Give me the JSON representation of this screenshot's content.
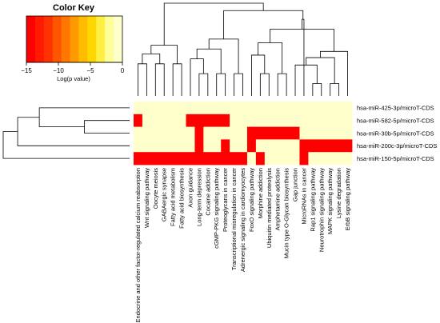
{
  "chart_data": {
    "type": "heatmap",
    "title": "",
    "color_key": {
      "title": "Color Key",
      "xlabel": "Log(p value)",
      "range": [
        -15,
        0
      ],
      "ticks": [
        -15,
        -10,
        -5,
        0
      ],
      "tick_labels": [
        "−15",
        "−10",
        "−5",
        "0"
      ],
      "colors": [
        "#ff0000",
        "#ff1a00",
        "#ff3300",
        "#ff5500",
        "#ff7700",
        "#ff9900",
        "#ffbb00",
        "#ffd700",
        "#ffee44",
        "#ffff99",
        "#ffffcc"
      ]
    },
    "low_color": "#ff0000",
    "high_color": "#ffffcc",
    "columns": [
      "Endocrine and other factor-regulated calcium reabsorption",
      "Wnt signaling pathway",
      "Oocyte meiosis",
      "GABAergic synapse",
      "Fatty acid metabolism",
      "Fatty acid biosynthesis",
      "Axon guidance",
      "Long-term depression",
      "Cocaine addiction",
      "cGMP-PKG signaling pathway",
      "Proteoglycans in cancer",
      "Transcriptional misregulation in cancer",
      "Adrenergic signaling in cardiomyocytes",
      "FoxO signaling pathway",
      "Morphine addiction",
      "Ubiquitin mediated proteolysis",
      "Amphetamine addiction",
      "Mucin type O-Glycan biosynthesis",
      "Gap junction",
      "MicroRNAs in cancer",
      "Rap1 signaling pathway",
      "Neurotrophin signaling pathway",
      "MAPK signaling pathway",
      "Lysine degradation",
      "ErbB signaling pathway"
    ],
    "rows": [
      "hsa-miR-425-3p/microT-CDS",
      "hsa-miR-582-5p/microT-CDS",
      "hsa-miR-30b-5p/microT-CDS",
      "hsa-miR-200c-3p/microT-CDS",
      "hsa-miR-150-5p/microT-CDS"
    ],
    "values": [
      [
        0,
        0,
        0,
        0,
        0,
        0,
        0,
        0,
        0,
        0,
        0,
        0,
        0,
        0,
        0,
        0,
        0,
        0,
        0,
        0,
        0,
        0,
        0,
        0,
        0
      ],
      [
        -15,
        0,
        0,
        0,
        0,
        0,
        -15,
        -15,
        -15,
        -15,
        -15,
        0,
        0,
        0,
        0,
        0,
        0,
        0,
        0,
        0,
        0,
        0,
        0,
        0,
        0
      ],
      [
        0,
        0,
        0,
        0,
        0,
        0,
        0,
        -15,
        0,
        0,
        0,
        0,
        0,
        -15,
        -15,
        -15,
        -15,
        -15,
        -15,
        0,
        0,
        0,
        0,
        0,
        0
      ],
      [
        0,
        0,
        0,
        0,
        0,
        0,
        0,
        -15,
        0,
        0,
        -15,
        0,
        0,
        -15,
        0,
        0,
        0,
        0,
        0,
        -15,
        -15,
        -15,
        -15,
        -15,
        -15
      ],
      [
        -15,
        -15,
        -15,
        -15,
        -15,
        -15,
        -15,
        -15,
        -15,
        -15,
        -15,
        -15,
        -15,
        0,
        -15,
        0,
        0,
        0,
        0,
        -15,
        0,
        0,
        0,
        0,
        0
      ]
    ],
    "column_dendrogram": [
      {
        "a": [
          0,
          1
        ],
        "h": 2.6
      },
      {
        "a": [
          2,
          3
        ],
        "h": 2.6
      },
      {
        "a": [
          4,
          5
        ],
        "h": 2.6
      },
      {
        "a": [
          7,
          8
        ],
        "h": 1.8
      },
      {
        "a": [
          9,
          10
        ],
        "h": 1.8
      },
      {
        "a": [
          11,
          12
        ],
        "h": 1.8
      },
      {
        "a": [
          14,
          15
        ],
        "h": 1.8
      },
      {
        "a": [
          16,
          17
        ],
        "h": 1.8
      },
      {
        "a": [
          20,
          21
        ],
        "h": 1.0
      },
      {
        "a": [
          22,
          23
        ],
        "h": 1.0
      },
      {
        "a": [
          [
            0,
            1
          ],
          [
            2,
            3
          ]
        ],
        "h": 3.4
      },
      {
        "a": [
          [
            0,
            3
          ],
          [
            4,
            5
          ]
        ],
        "h": 4.1
      },
      {
        "a": [
          6,
          [
            7,
            8
          ]
        ],
        "h": 3.0
      },
      {
        "a": [
          [
            6,
            8
          ],
          [
            9,
            10
          ]
        ],
        "h": 3.8
      },
      {
        "a": [
          [
            6,
            10
          ],
          [
            11,
            12
          ]
        ],
        "h": 4.6
      },
      {
        "a": [
          13,
          [
            14,
            15
          ]
        ],
        "h": 3.3
      },
      {
        "a": [
          [
            13,
            15
          ],
          [
            16,
            17
          ]
        ],
        "h": 4.3
      },
      {
        "a": [
          18,
          [
            20,
            21
          ]
        ],
        "h": 2.5
      },
      {
        "a": [
          [
            18,
            21
          ],
          [
            22,
            23
          ]
        ],
        "h": 3.1
      },
      {
        "a": [
          [
            18,
            23
          ],
          24
        ],
        "h": 3.6
      },
      {
        "a": [
          [
            13,
            17
          ],
          [
            18,
            24
          ]
        ],
        "h": 5.4
      },
      {
        "a": [
          19,
          [
            13,
            24
          ]
        ],
        "h": 6.2
      },
      {
        "a": [
          [
            6,
            12
          ],
          [
            13,
            24
          ]
        ],
        "h": 6.9
      },
      {
        "a": [
          [
            0,
            5
          ],
          [
            6,
            24
          ]
        ],
        "h": 7.5
      }
    ],
    "row_dendrogram": [
      {
        "a": [
          1,
          2
        ],
        "h": 2.5
      },
      {
        "a": [
          0,
          [
            1,
            2
          ]
        ],
        "h": 5.0
      },
      {
        "a": [
          3,
          [
            0,
            2
          ]
        ],
        "h": 6.2
      },
      {
        "a": [
          4,
          [
            0,
            3
          ]
        ],
        "h": 7.0
      }
    ]
  }
}
